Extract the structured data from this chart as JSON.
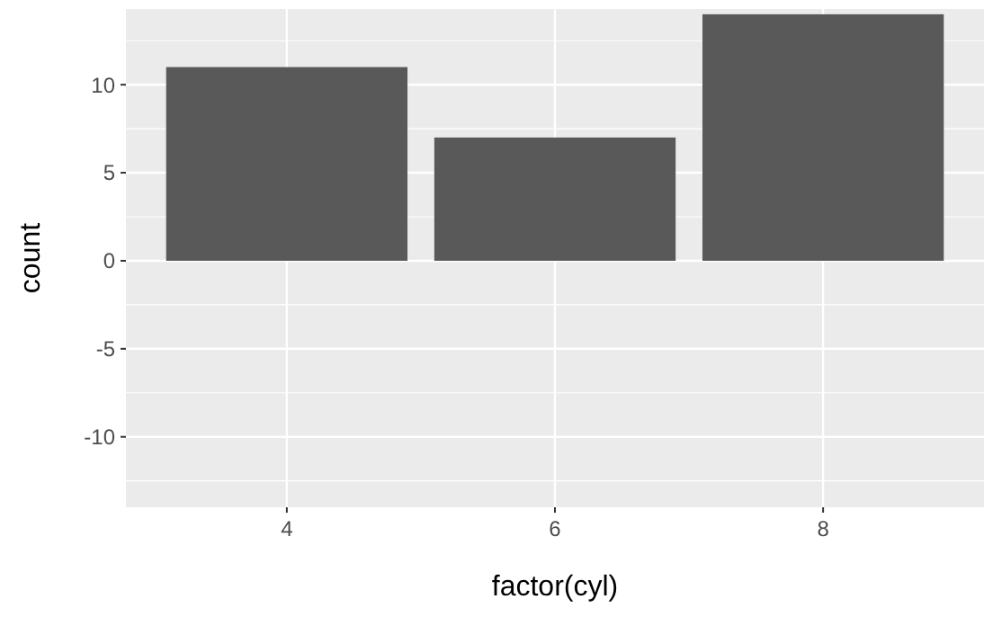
{
  "chart_data": {
    "type": "bar",
    "xlabel": "factor(cyl)",
    "ylabel": "count",
    "categories": [
      "4",
      "6",
      "8"
    ],
    "values": [
      11,
      7,
      14
    ],
    "color": "#595959",
    "ylim": [
      -14,
      14.3
    ],
    "yticks": [
      -10,
      -5,
      0,
      5,
      10
    ],
    "grid": true
  }
}
